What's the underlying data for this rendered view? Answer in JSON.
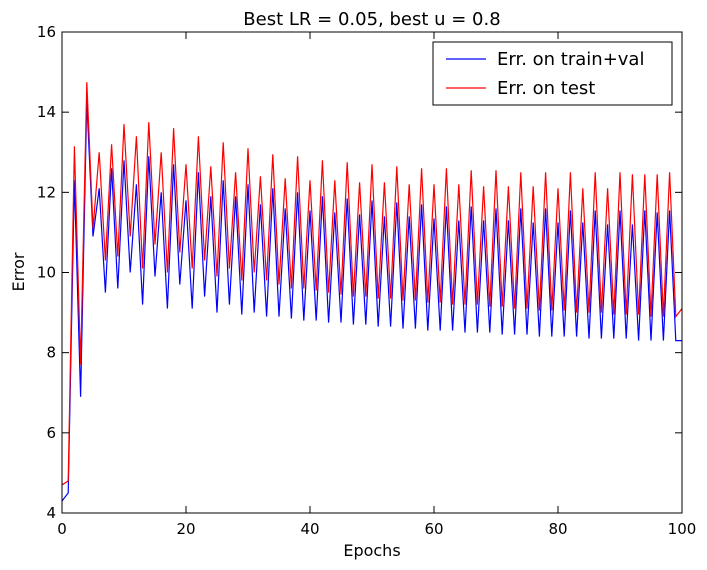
{
  "chart_data": {
    "type": "line",
    "title": "Best LR = 0.05, best u = 0.8",
    "xlabel": "Epochs",
    "ylabel": "Error",
    "xlim": [
      0,
      100
    ],
    "ylim": [
      4,
      16
    ],
    "xticks": [
      0,
      20,
      40,
      60,
      80,
      100
    ],
    "yticks": [
      4,
      6,
      8,
      10,
      12,
      14,
      16
    ],
    "grid": false,
    "legend_position": "top-right",
    "series": [
      {
        "name": "Err. on train+val",
        "color": "#0000ff",
        "x": [
          0,
          1,
          2,
          3,
          4,
          5,
          6,
          7,
          8,
          9,
          10,
          11,
          12,
          13,
          14,
          15,
          16,
          17,
          18,
          19,
          20,
          21,
          22,
          23,
          24,
          25,
          26,
          27,
          28,
          29,
          30,
          31,
          32,
          33,
          34,
          35,
          36,
          37,
          38,
          39,
          40,
          41,
          42,
          43,
          44,
          45,
          46,
          47,
          48,
          49,
          50,
          51,
          52,
          53,
          54,
          55,
          56,
          57,
          58,
          59,
          60,
          61,
          62,
          63,
          64,
          65,
          66,
          67,
          68,
          69,
          70,
          71,
          72,
          73,
          74,
          75,
          76,
          77,
          78,
          79,
          80,
          81,
          82,
          83,
          84,
          85,
          86,
          87,
          88,
          89,
          90,
          91,
          92,
          93,
          94,
          95,
          96,
          97,
          98,
          99,
          100
        ],
        "values": [
          4.3,
          4.5,
          12.3,
          6.9,
          14.3,
          10.9,
          12.1,
          9.5,
          12.6,
          9.6,
          12.8,
          10.0,
          12.2,
          9.2,
          12.9,
          9.9,
          12.0,
          9.1,
          12.7,
          9.7,
          11.8,
          9.1,
          12.5,
          9.4,
          11.9,
          9.0,
          12.3,
          9.2,
          11.9,
          8.95,
          12.2,
          9.0,
          11.7,
          8.9,
          12.1,
          8.9,
          11.6,
          8.85,
          12.0,
          8.8,
          11.55,
          8.8,
          11.9,
          8.75,
          11.5,
          8.75,
          11.85,
          8.7,
          11.45,
          8.7,
          11.8,
          8.65,
          11.4,
          8.65,
          11.75,
          8.6,
          11.4,
          8.6,
          11.7,
          8.55,
          11.35,
          8.55,
          11.65,
          8.55,
          11.3,
          8.5,
          11.65,
          8.5,
          11.3,
          8.5,
          11.6,
          8.45,
          11.3,
          8.45,
          11.6,
          8.45,
          11.25,
          8.4,
          11.6,
          8.4,
          11.25,
          8.4,
          11.55,
          8.4,
          11.25,
          8.35,
          11.55,
          8.35,
          11.2,
          8.35,
          11.55,
          8.35,
          11.2,
          8.3,
          11.55,
          8.3,
          11.5,
          8.3,
          11.55,
          8.3,
          8.3
        ]
      },
      {
        "name": "Err. on test",
        "color": "#ff0000",
        "x": [
          0,
          1,
          2,
          3,
          4,
          5,
          6,
          7,
          8,
          9,
          10,
          11,
          12,
          13,
          14,
          15,
          16,
          17,
          18,
          19,
          20,
          21,
          22,
          23,
          24,
          25,
          26,
          27,
          28,
          29,
          30,
          31,
          32,
          33,
          34,
          35,
          36,
          37,
          38,
          39,
          40,
          41,
          42,
          43,
          44,
          45,
          46,
          47,
          48,
          49,
          50,
          51,
          52,
          53,
          54,
          55,
          56,
          57,
          58,
          59,
          60,
          61,
          62,
          63,
          64,
          65,
          66,
          67,
          68,
          69,
          70,
          71,
          72,
          73,
          74,
          75,
          76,
          77,
          78,
          79,
          80,
          81,
          82,
          83,
          84,
          85,
          86,
          87,
          88,
          89,
          90,
          91,
          92,
          93,
          94,
          95,
          96,
          97,
          98,
          99,
          100
        ],
        "values": [
          4.7,
          4.8,
          13.15,
          7.7,
          14.75,
          11.1,
          13.0,
          10.3,
          13.2,
          10.4,
          13.7,
          10.9,
          13.4,
          10.1,
          13.75,
          10.7,
          13.0,
          10.0,
          13.6,
          10.5,
          12.7,
          10.1,
          13.4,
          10.3,
          12.65,
          9.9,
          13.25,
          10.1,
          12.5,
          9.8,
          13.1,
          10.0,
          12.4,
          9.8,
          12.95,
          9.7,
          12.35,
          9.6,
          12.9,
          9.6,
          12.3,
          9.55,
          12.8,
          9.5,
          12.3,
          9.45,
          12.75,
          9.4,
          12.25,
          9.4,
          12.7,
          9.35,
          12.25,
          9.35,
          12.65,
          9.3,
          12.2,
          9.3,
          12.6,
          9.25,
          12.2,
          9.25,
          12.6,
          9.2,
          12.2,
          9.2,
          12.55,
          9.2,
          12.15,
          9.15,
          12.55,
          9.15,
          12.15,
          9.1,
          12.5,
          9.1,
          12.15,
          9.05,
          12.5,
          9.05,
          12.1,
          9.05,
          12.5,
          9.0,
          12.1,
          9.0,
          12.5,
          9.0,
          12.1,
          8.95,
          12.5,
          8.95,
          12.45,
          8.95,
          12.45,
          8.9,
          12.45,
          8.9,
          12.5,
          8.9,
          9.1
        ]
      }
    ]
  }
}
